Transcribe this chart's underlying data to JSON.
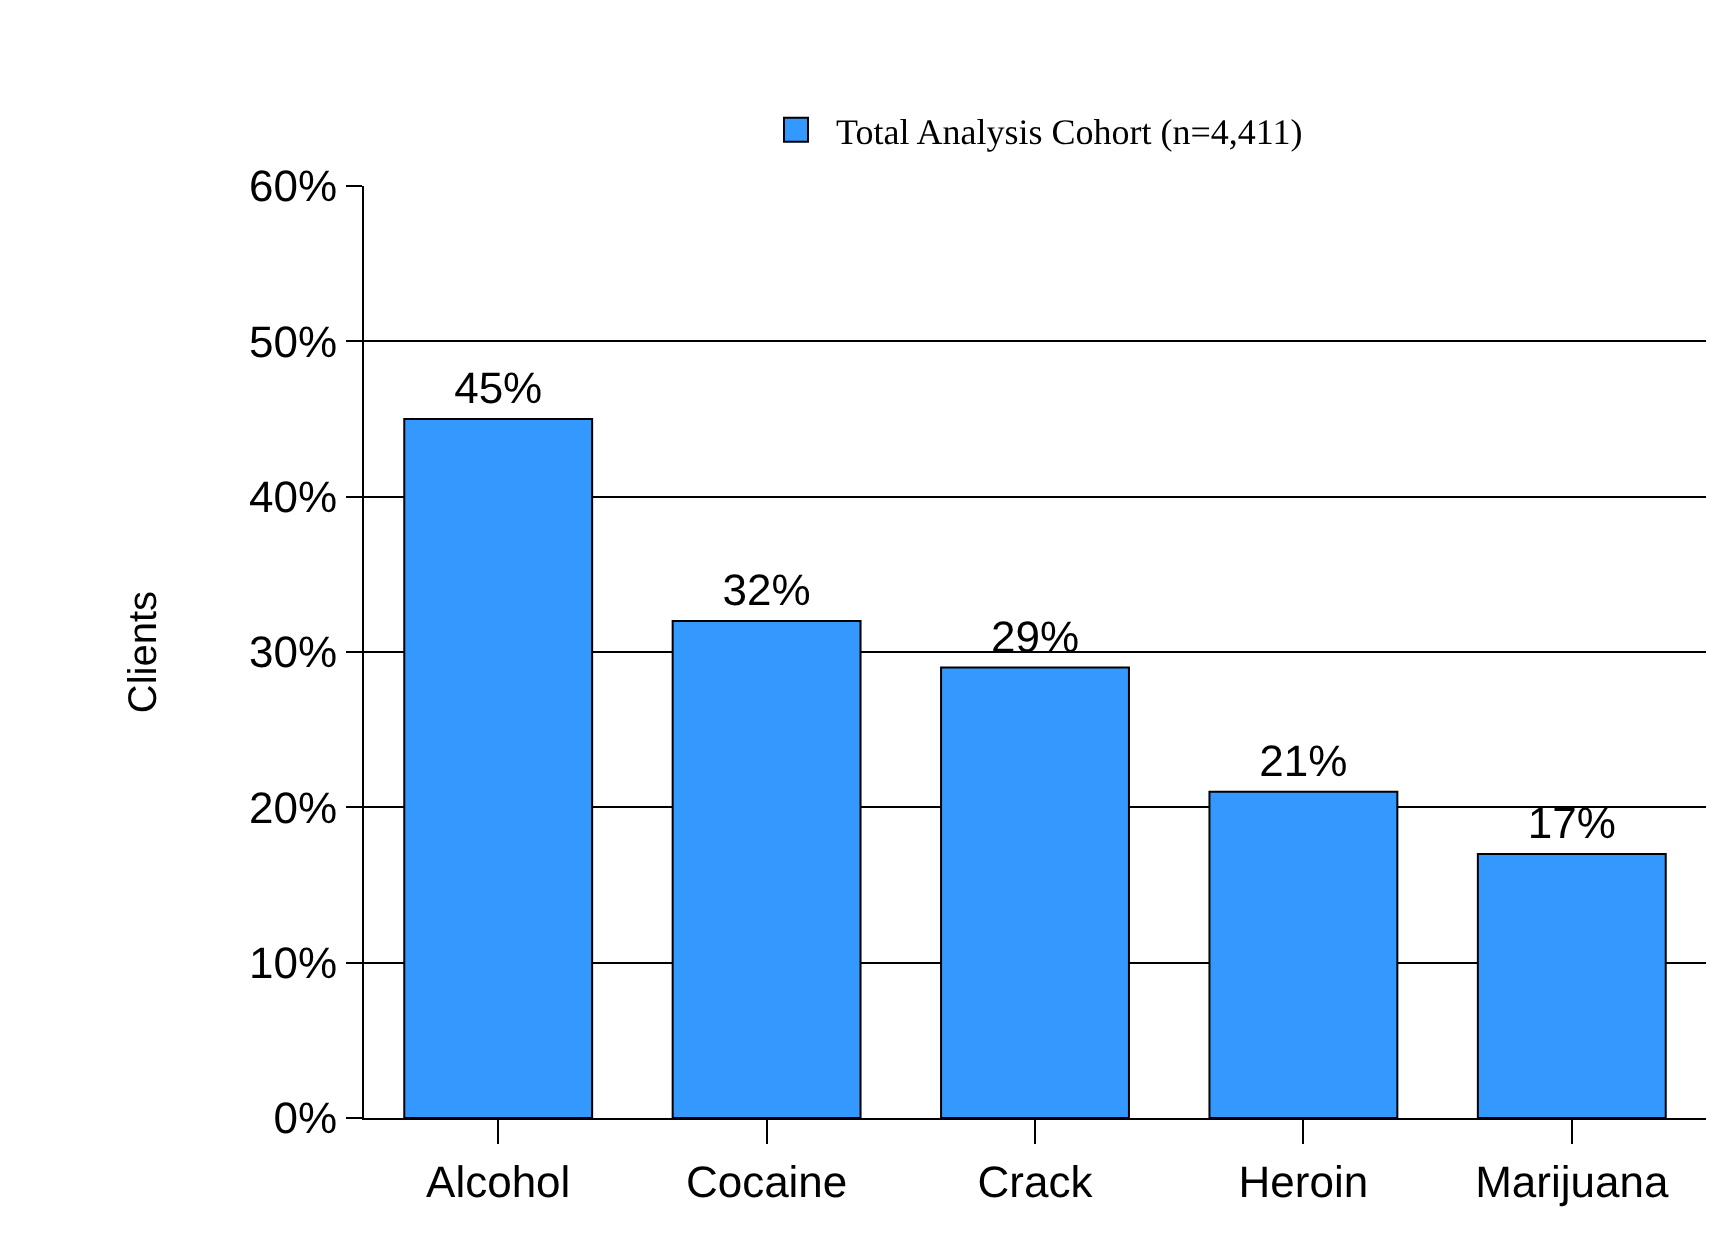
{
  "chart_data": {
    "type": "bar",
    "ylabel": "Clients",
    "categories": [
      "Alcohol",
      "Cocaine",
      "Crack",
      "Heroin",
      "Marijuana"
    ],
    "series": [
      {
        "name": "Total Analysis Cohort (n=4,411)",
        "color": "#3399ff",
        "values": [
          45,
          32,
          29,
          21,
          17
        ],
        "value_labels": [
          "45%",
          "32%",
          "29%",
          "21%",
          "17%"
        ]
      }
    ],
    "ylim": [
      0,
      60
    ],
    "yticks": [
      {
        "value": 0,
        "label": "0%"
      },
      {
        "value": 10,
        "label": "10%"
      },
      {
        "value": 20,
        "label": "20%"
      },
      {
        "value": 30,
        "label": "30%"
      },
      {
        "value": 40,
        "label": "40%"
      },
      {
        "value": 50,
        "label": "50%"
      },
      {
        "value": 60,
        "label": "60%"
      }
    ],
    "grid": "y",
    "legend": "top"
  }
}
